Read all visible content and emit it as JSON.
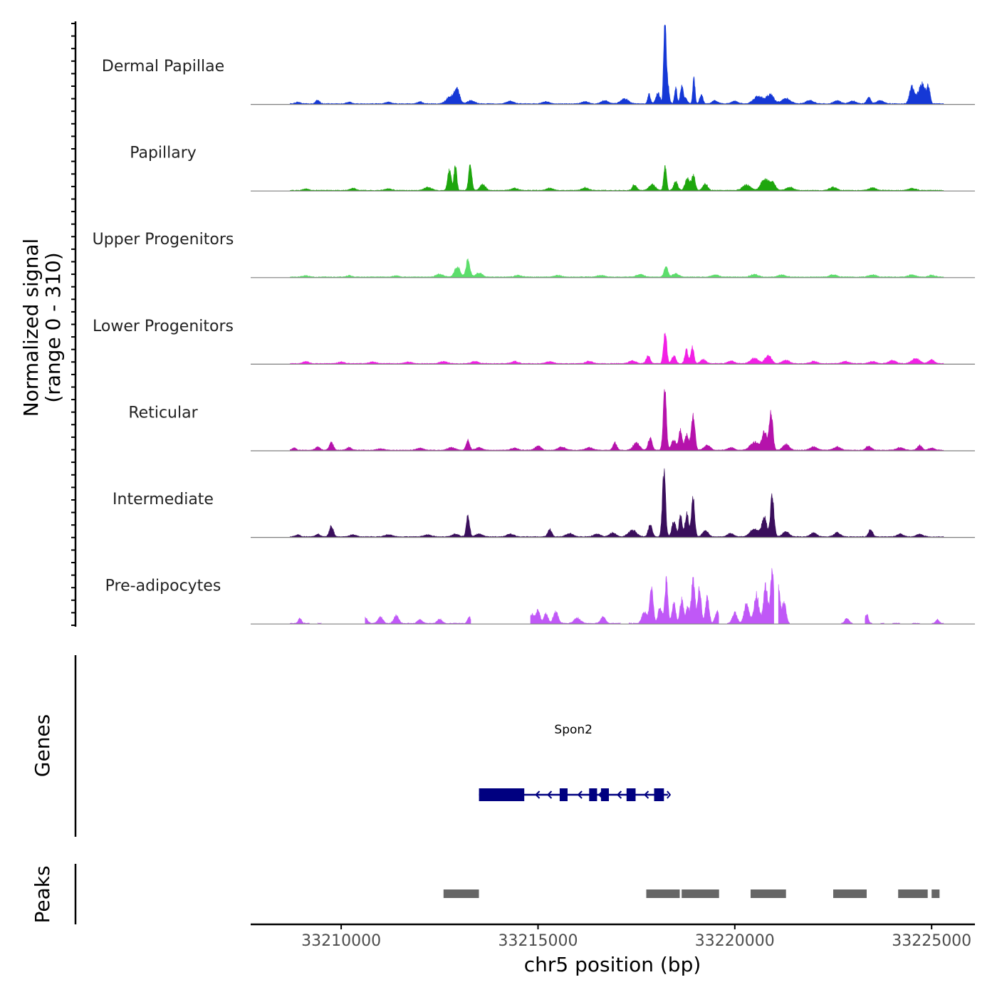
{
  "chart_data": {
    "type": "area",
    "title": "",
    "xlabel": "chr5 position (bp)",
    "ylabel_line1": "Normalized signal",
    "ylabel_line2": "(range 0 - 310)",
    "y_range": [
      0,
      310
    ],
    "xlim": [
      33207700,
      33226100
    ],
    "x_ticks": [
      33210000,
      33215000,
      33220000,
      33225000
    ],
    "x_tick_labels": [
      "33210000",
      "33215000",
      "33220000",
      "33225000"
    ],
    "data_extent": [
      33208700,
      33225300
    ],
    "tracks": [
      {
        "name": "Dermal Papillae",
        "color": "#1538D6",
        "peaks": [
          [
            33208900,
            6,
            60
          ],
          [
            33209400,
            14,
            50
          ],
          [
            33210200,
            6,
            70
          ],
          [
            33211200,
            6,
            70
          ],
          [
            33212000,
            8,
            60
          ],
          [
            33212800,
            30,
            110
          ],
          [
            33212950,
            45,
            60
          ],
          [
            33213300,
            12,
            90
          ],
          [
            33214300,
            10,
            90
          ],
          [
            33215200,
            8,
            90
          ],
          [
            33216200,
            8,
            90
          ],
          [
            33216700,
            12,
            90
          ],
          [
            33217200,
            18,
            100
          ],
          [
            33217820,
            36,
            35
          ],
          [
            33218050,
            40,
            55
          ],
          [
            33218220,
            300,
            28
          ],
          [
            33218270,
            110,
            45
          ],
          [
            33218500,
            65,
            30
          ],
          [
            33218650,
            70,
            35
          ],
          [
            33218750,
            20,
            45
          ],
          [
            33218960,
            100,
            28
          ],
          [
            33219150,
            35,
            40
          ],
          [
            33219500,
            12,
            70
          ],
          [
            33220000,
            10,
            80
          ],
          [
            33220600,
            28,
            120
          ],
          [
            33220900,
            35,
            90
          ],
          [
            33221300,
            20,
            110
          ],
          [
            33221900,
            12,
            100
          ],
          [
            33222600,
            12,
            90
          ],
          [
            33223000,
            10,
            90
          ],
          [
            33223400,
            25,
            50
          ],
          [
            33223700,
            12,
            90
          ],
          [
            33224500,
            65,
            60
          ],
          [
            33224750,
            75,
            90
          ],
          [
            33224920,
            60,
            40
          ]
        ]
      },
      {
        "name": "Papillary",
        "color": "#1EA60D",
        "peaks": [
          [
            33209100,
            6,
            70
          ],
          [
            33210300,
            8,
            70
          ],
          [
            33211200,
            6,
            90
          ],
          [
            33212200,
            12,
            90
          ],
          [
            33212750,
            80,
            45
          ],
          [
            33212900,
            95,
            35
          ],
          [
            33213280,
            105,
            40
          ],
          [
            33213600,
            22,
            70
          ],
          [
            33214400,
            8,
            90
          ],
          [
            33215300,
            8,
            90
          ],
          [
            33216200,
            10,
            80
          ],
          [
            33217450,
            22,
            50
          ],
          [
            33217900,
            22,
            80
          ],
          [
            33218230,
            90,
            35
          ],
          [
            33218500,
            35,
            50
          ],
          [
            33218800,
            45,
            60
          ],
          [
            33218950,
            55,
            45
          ],
          [
            33219250,
            25,
            60
          ],
          [
            33220300,
            20,
            100
          ],
          [
            33220750,
            40,
            90
          ],
          [
            33220950,
            30,
            80
          ],
          [
            33221400,
            12,
            90
          ],
          [
            33222500,
            12,
            90
          ],
          [
            33223500,
            10,
            90
          ],
          [
            33224500,
            8,
            90
          ]
        ]
      },
      {
        "name": "Upper Progenitors",
        "color": "#5CDE6B",
        "peaks": [
          [
            33209100,
            5,
            70
          ],
          [
            33210200,
            5,
            70
          ],
          [
            33211400,
            5,
            70
          ],
          [
            33212500,
            10,
            90
          ],
          [
            33212950,
            40,
            70
          ],
          [
            33213220,
            65,
            50
          ],
          [
            33213500,
            15,
            80
          ],
          [
            33214500,
            6,
            90
          ],
          [
            33215500,
            6,
            90
          ],
          [
            33216600,
            6,
            90
          ],
          [
            33217600,
            10,
            90
          ],
          [
            33218250,
            45,
            45
          ],
          [
            33218500,
            12,
            80
          ],
          [
            33219500,
            8,
            90
          ],
          [
            33220500,
            10,
            90
          ],
          [
            33221200,
            8,
            90
          ],
          [
            33222500,
            8,
            90
          ],
          [
            33223500,
            8,
            90
          ],
          [
            33224500,
            8,
            90
          ],
          [
            33225000,
            6,
            80
          ]
        ]
      },
      {
        "name": "Lower Progenitors",
        "color": "#F21FE5",
        "peaks": [
          [
            33209100,
            8,
            70
          ],
          [
            33210000,
            6,
            80
          ],
          [
            33210800,
            6,
            90
          ],
          [
            33211700,
            6,
            90
          ],
          [
            33212600,
            8,
            90
          ],
          [
            33213400,
            8,
            90
          ],
          [
            33214400,
            8,
            90
          ],
          [
            33215300,
            8,
            90
          ],
          [
            33216300,
            8,
            90
          ],
          [
            33217400,
            10,
            90
          ],
          [
            33217800,
            30,
            50
          ],
          [
            33218230,
            125,
            40
          ],
          [
            33218450,
            30,
            50
          ],
          [
            33218770,
            55,
            40
          ],
          [
            33218920,
            65,
            40
          ],
          [
            33219200,
            15,
            70
          ],
          [
            33219900,
            10,
            80
          ],
          [
            33220500,
            20,
            100
          ],
          [
            33220850,
            30,
            80
          ],
          [
            33221300,
            12,
            90
          ],
          [
            33222000,
            8,
            90
          ],
          [
            33222800,
            8,
            90
          ],
          [
            33223500,
            8,
            90
          ],
          [
            33224000,
            12,
            90
          ],
          [
            33224600,
            20,
            100
          ],
          [
            33225000,
            15,
            70
          ]
        ]
      },
      {
        "name": "Reticular",
        "color": "#B512AB",
        "peaks": [
          [
            33208800,
            8,
            50
          ],
          [
            33209400,
            12,
            60
          ],
          [
            33209750,
            30,
            50
          ],
          [
            33210200,
            10,
            60
          ],
          [
            33211000,
            6,
            80
          ],
          [
            33212000,
            8,
            80
          ],
          [
            33212800,
            10,
            90
          ],
          [
            33213220,
            38,
            45
          ],
          [
            33213500,
            10,
            80
          ],
          [
            33214400,
            8,
            90
          ],
          [
            33215000,
            15,
            80
          ],
          [
            33215600,
            12,
            90
          ],
          [
            33216300,
            10,
            90
          ],
          [
            33216950,
            28,
            50
          ],
          [
            33217500,
            28,
            80
          ],
          [
            33217850,
            45,
            50
          ],
          [
            33218220,
            225,
            40
          ],
          [
            33218450,
            40,
            60
          ],
          [
            33218620,
            75,
            40
          ],
          [
            33218780,
            60,
            50
          ],
          [
            33218940,
            135,
            45
          ],
          [
            33219300,
            18,
            80
          ],
          [
            33219900,
            10,
            80
          ],
          [
            33220500,
            30,
            110
          ],
          [
            33220750,
            70,
            60
          ],
          [
            33220920,
            145,
            45
          ],
          [
            33221300,
            22,
            80
          ],
          [
            33222000,
            12,
            90
          ],
          [
            33222600,
            12,
            90
          ],
          [
            33223400,
            15,
            70
          ],
          [
            33224200,
            10,
            90
          ],
          [
            33224700,
            18,
            60
          ],
          [
            33225000,
            8,
            70
          ]
        ]
      },
      {
        "name": "Intermediate",
        "color": "#3A0E5C",
        "peaks": [
          [
            33208900,
            8,
            60
          ],
          [
            33209400,
            10,
            60
          ],
          [
            33209750,
            42,
            50
          ],
          [
            33210300,
            8,
            80
          ],
          [
            33211200,
            8,
            90
          ],
          [
            33212200,
            8,
            90
          ],
          [
            33212900,
            10,
            90
          ],
          [
            33213220,
            85,
            40
          ],
          [
            33213500,
            12,
            80
          ],
          [
            33214300,
            10,
            90
          ],
          [
            33215300,
            30,
            50
          ],
          [
            33215800,
            12,
            90
          ],
          [
            33216500,
            10,
            90
          ],
          [
            33216900,
            15,
            80
          ],
          [
            33217400,
            25,
            100
          ],
          [
            33217850,
            45,
            50
          ],
          [
            33218200,
            245,
            40
          ],
          [
            33218450,
            60,
            50
          ],
          [
            33218620,
            80,
            40
          ],
          [
            33218780,
            90,
            45
          ],
          [
            33218940,
            150,
            40
          ],
          [
            33219250,
            25,
            70
          ],
          [
            33219900,
            12,
            80
          ],
          [
            33220500,
            30,
            110
          ],
          [
            33220750,
            75,
            60
          ],
          [
            33220950,
            160,
            45
          ],
          [
            33221300,
            20,
            80
          ],
          [
            33222000,
            15,
            80
          ],
          [
            33222600,
            15,
            80
          ],
          [
            33223450,
            28,
            50
          ],
          [
            33224200,
            10,
            80
          ],
          [
            33224700,
            10,
            80
          ]
        ]
      },
      {
        "name": "Pre-adipocytes",
        "color": "#C058F7",
        "dropouts": [
          [
            33209200,
            33209400
          ],
          [
            33209500,
            33210600
          ],
          [
            33213300,
            33214800
          ],
          [
            33217100,
            33217300
          ],
          [
            33219600,
            33219800
          ],
          [
            33221000,
            33221100
          ],
          [
            33221400,
            33222700
          ],
          [
            33223000,
            33223300
          ],
          [
            33223500,
            33223700
          ],
          [
            33223800,
            33224000
          ],
          [
            33224200,
            33224500
          ],
          [
            33224700,
            33225000
          ]
        ],
        "peaks": [
          [
            33208950,
            20,
            40
          ],
          [
            33209300,
            15,
            40
          ],
          [
            33210200,
            15,
            50
          ],
          [
            33210600,
            25,
            60
          ],
          [
            33211000,
            25,
            60
          ],
          [
            33211400,
            30,
            60
          ],
          [
            33212000,
            15,
            60
          ],
          [
            33212500,
            15,
            60
          ],
          [
            33213250,
            25,
            40
          ],
          [
            33214300,
            12,
            40
          ],
          [
            33214850,
            35,
            50
          ],
          [
            33215000,
            50,
            50
          ],
          [
            33215200,
            40,
            50
          ],
          [
            33215450,
            45,
            60
          ],
          [
            33216000,
            20,
            80
          ],
          [
            33216650,
            25,
            60
          ],
          [
            33217200,
            12,
            60
          ],
          [
            33217700,
            45,
            60
          ],
          [
            33217880,
            140,
            45
          ],
          [
            33218100,
            60,
            50
          ],
          [
            33218260,
            160,
            40
          ],
          [
            33218450,
            80,
            45
          ],
          [
            33218650,
            90,
            45
          ],
          [
            33218800,
            60,
            40
          ],
          [
            33218940,
            170,
            45
          ],
          [
            33219100,
            130,
            45
          ],
          [
            33219300,
            100,
            45
          ],
          [
            33219550,
            45,
            50
          ],
          [
            33220000,
            40,
            60
          ],
          [
            33220300,
            80,
            60
          ],
          [
            33220550,
            110,
            60
          ],
          [
            33220780,
            140,
            55
          ],
          [
            33220950,
            190,
            45
          ],
          [
            33221100,
            150,
            45
          ],
          [
            33221250,
            80,
            50
          ],
          [
            33222850,
            20,
            50
          ],
          [
            33223350,
            35,
            40
          ],
          [
            33223900,
            12,
            40
          ],
          [
            33224300,
            12,
            40
          ],
          [
            33224800,
            20,
            40
          ],
          [
            33225150,
            15,
            40
          ]
        ]
      }
    ],
    "genes": [
      {
        "name": "Spon2",
        "start": 33213500,
        "end": 33218300,
        "strand": "-",
        "exons": [
          [
            33213500,
            33214650
          ],
          [
            33215550,
            33215750
          ],
          [
            33216300,
            33216500
          ],
          [
            33216600,
            33216800
          ],
          [
            33217250,
            33217480
          ],
          [
            33217950,
            33218200
          ]
        ]
      }
    ],
    "peak_regions": [
      [
        33212600,
        33213500
      ],
      [
        33217750,
        33218600
      ],
      [
        33218650,
        33219600
      ],
      [
        33220400,
        33221300
      ],
      [
        33222500,
        33223350
      ],
      [
        33224150,
        33224900
      ],
      [
        33225000,
        33225200
      ]
    ],
    "panels": {
      "genes_label": "Genes",
      "peaks_label": "Peaks"
    },
    "colors": {
      "track_baseline": "#7f7f7f",
      "axis": "#000000",
      "gene": "#000080",
      "peak": "#666666"
    }
  }
}
